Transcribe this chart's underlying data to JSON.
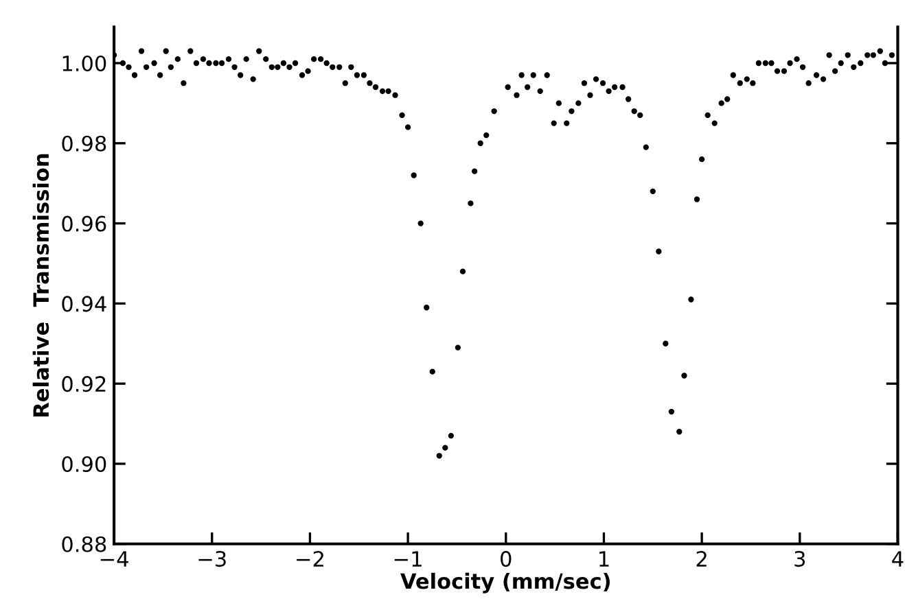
{
  "chart_data": {
    "type": "scatter",
    "xlabel": "Velocity (mm/sec)",
    "ylabel": "Relative  Transmission",
    "xlim": [
      -4,
      4
    ],
    "ylim": [
      0.88,
      1.009
    ],
    "xticks": [
      {
        "value": -4,
        "label": "−4"
      },
      {
        "value": -3,
        "label": "−3"
      },
      {
        "value": -2,
        "label": "−2"
      },
      {
        "value": -1,
        "label": "−1"
      },
      0,
      1,
      2,
      3,
      4
    ],
    "yticks": [
      {
        "value": 0.88,
        "label": "0.88"
      },
      {
        "value": 0.9,
        "label": "0.90"
      },
      {
        "value": 0.92,
        "label": "0.92"
      },
      {
        "value": 0.94,
        "label": "0.94"
      },
      {
        "value": 0.96,
        "label": "0.96"
      },
      {
        "value": 0.98,
        "label": "0.98"
      },
      {
        "value": 1.0,
        "label": "1.00"
      }
    ],
    "grid": false,
    "marker": "circle",
    "series": [
      {
        "color": "#000000",
        "x": [
          -4.0,
          -3.91,
          -3.85,
          -3.79,
          -3.72,
          -3.67,
          -3.59,
          -3.53,
          -3.47,
          -3.42,
          -3.35,
          -3.29,
          -3.22,
          -3.16,
          -3.09,
          -3.03,
          -2.96,
          -2.9,
          -2.83,
          -2.77,
          -2.71,
          -2.65,
          -2.58,
          -2.52,
          -2.45,
          -2.39,
          -2.33,
          -2.27,
          -2.21,
          -2.15,
          -2.08,
          -2.02,
          -1.96,
          -1.89,
          -1.83,
          -1.77,
          -1.7,
          -1.64,
          -1.58,
          -1.52,
          -1.45,
          -1.39,
          -1.33,
          -1.26,
          -1.2,
          -1.13,
          -1.06,
          -1.0,
          -0.94,
          -0.87,
          -0.81,
          -0.75,
          -0.68,
          -0.62,
          -0.56,
          -0.49,
          -0.44,
          -0.36,
          -0.32,
          -0.26,
          -0.2,
          -0.12,
          0.02,
          0.11,
          0.16,
          0.22,
          0.28,
          0.35,
          0.42,
          0.49,
          0.54,
          0.62,
          0.67,
          0.74,
          0.8,
          0.86,
          0.92,
          0.99,
          1.05,
          1.11,
          1.19,
          1.25,
          1.31,
          1.37,
          1.43,
          1.5,
          1.56,
          1.63,
          1.69,
          1.77,
          1.82,
          1.89,
          1.95,
          2.0,
          2.06,
          2.13,
          2.2,
          2.26,
          2.32,
          2.39,
          2.46,
          2.52,
          2.58,
          2.65,
          2.71,
          2.77,
          2.84,
          2.9,
          2.97,
          3.03,
          3.09,
          3.17,
          3.24,
          3.3,
          3.36,
          3.42,
          3.49,
          3.55,
          3.62,
          3.69,
          3.75,
          3.82,
          3.87,
          3.94
        ],
        "values": [
          1.002,
          1.0,
          0.999,
          0.997,
          1.003,
          0.999,
          1.0,
          0.997,
          1.003,
          0.999,
          1.001,
          0.995,
          1.003,
          1.0,
          1.001,
          1.0,
          1.0,
          1.0,
          1.001,
          0.999,
          0.997,
          1.001,
          0.996,
          1.003,
          1.001,
          0.999,
          0.999,
          1.0,
          0.999,
          1.0,
          0.997,
          0.998,
          1.001,
          1.001,
          1.0,
          0.999,
          0.999,
          0.995,
          0.999,
          0.997,
          0.997,
          0.995,
          0.994,
          0.993,
          0.993,
          0.992,
          0.987,
          0.984,
          0.972,
          0.96,
          0.939,
          0.923,
          0.902,
          0.904,
          0.907,
          0.929,
          0.948,
          0.965,
          0.973,
          0.98,
          0.982,
          0.988,
          0.994,
          0.992,
          0.997,
          0.994,
          0.997,
          0.993,
          0.997,
          0.985,
          0.99,
          0.985,
          0.988,
          0.99,
          0.995,
          0.992,
          0.996,
          0.995,
          0.993,
          0.994,
          0.994,
          0.991,
          0.988,
          0.987,
          0.979,
          0.968,
          0.953,
          0.93,
          0.913,
          0.908,
          0.922,
          0.941,
          0.966,
          0.976,
          0.987,
          0.985,
          0.99,
          0.991,
          0.997,
          0.995,
          0.996,
          0.995,
          1.0,
          1.0,
          1.0,
          0.998,
          0.998,
          1.0,
          1.001,
          0.999,
          0.995,
          0.997,
          0.996,
          1.002,
          0.998,
          1.0,
          1.002,
          0.999,
          1.0,
          1.002,
          1.002,
          1.003,
          1.0,
          1.002
        ]
      }
    ]
  }
}
